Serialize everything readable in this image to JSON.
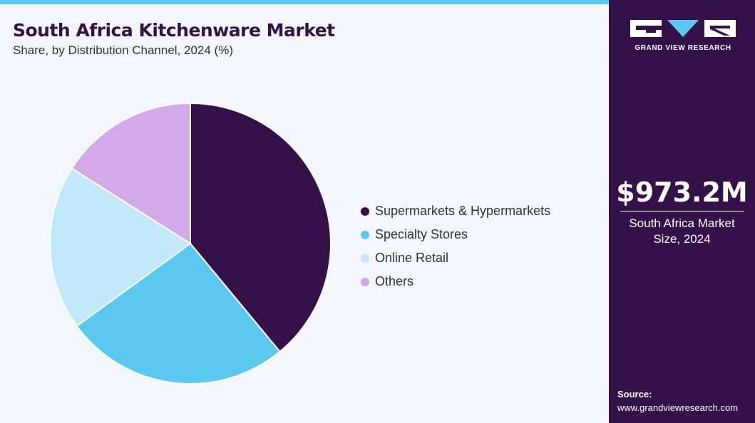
{
  "header": {
    "title": "South Africa Kitchenware Market",
    "subtitle": "Share, by Distribution Channel, 2024 (%)"
  },
  "brand": {
    "name": "GRAND VIEW RESEARCH",
    "logo_icon": "gvr-logo-icon"
  },
  "sidebar": {
    "market_size": "$973.2M",
    "market_label_line1": "South Africa Market",
    "market_label_line2": "Size, 2024",
    "source_label": "Source:",
    "source_url": "www.grandviewresearch.com"
  },
  "colors": {
    "accent_strip": "#5bc8f0",
    "sidebar_bg": "#35114a",
    "background": "#f3f6fb"
  },
  "chart_data": {
    "type": "pie",
    "title": "South Africa Kitchenware Market",
    "subtitle": "Share, by Distribution Channel, 2024 (%)",
    "legend_position": "right",
    "start_angle_deg": 0,
    "direction": "clockwise",
    "slices": [
      {
        "label": "Supermarkets & Hypermarkets",
        "value": 39,
        "color": "#35114a"
      },
      {
        "label": "Specialty Stores",
        "value": 26,
        "color": "#5bc8f0"
      },
      {
        "label": "Online Retail",
        "value": 19,
        "color": "#c1e9fa"
      },
      {
        "label": "Others",
        "value": 16,
        "color": "#d4a9ea"
      }
    ]
  }
}
